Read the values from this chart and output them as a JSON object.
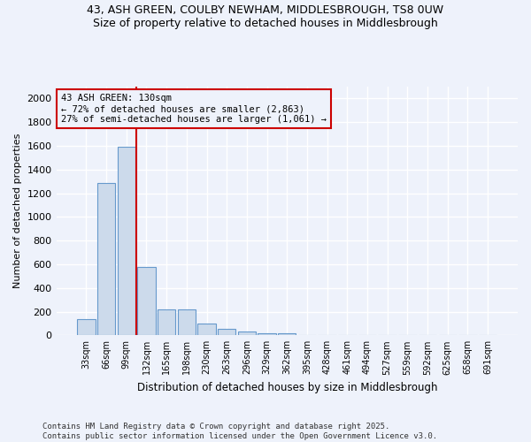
{
  "title_line1": "43, ASH GREEN, COULBY NEWHAM, MIDDLESBROUGH, TS8 0UW",
  "title_line2": "Size of property relative to detached houses in Middlesbrough",
  "xlabel": "Distribution of detached houses by size in Middlesbrough",
  "ylabel": "Number of detached properties",
  "categories": [
    "33sqm",
    "66sqm",
    "99sqm",
    "132sqm",
    "165sqm",
    "198sqm",
    "230sqm",
    "263sqm",
    "296sqm",
    "329sqm",
    "362sqm",
    "395sqm",
    "428sqm",
    "461sqm",
    "494sqm",
    "527sqm",
    "559sqm",
    "592sqm",
    "625sqm",
    "658sqm",
    "691sqm"
  ],
  "values": [
    140,
    1290,
    1590,
    580,
    220,
    220,
    100,
    55,
    30,
    20,
    20,
    0,
    0,
    0,
    0,
    0,
    0,
    0,
    0,
    0,
    0
  ],
  "bar_color": "#ccdaeb",
  "bar_edge_color": "#6699cc",
  "vline_x": 2.5,
  "vline_color": "#cc0000",
  "annotation_text_line1": "43 ASH GREEN: 130sqm",
  "annotation_text_line2": "← 72% of detached houses are smaller (2,863)",
  "annotation_text_line3": "27% of semi-detached houses are larger (1,061) →",
  "ylim": [
    0,
    2100
  ],
  "yticks": [
    0,
    200,
    400,
    600,
    800,
    1000,
    1200,
    1400,
    1600,
    1800,
    2000
  ],
  "background_color": "#eef2fb",
  "grid_color": "#ffffff",
  "footer_line1": "Contains HM Land Registry data © Crown copyright and database right 2025.",
  "footer_line2": "Contains public sector information licensed under the Open Government Licence v3.0."
}
